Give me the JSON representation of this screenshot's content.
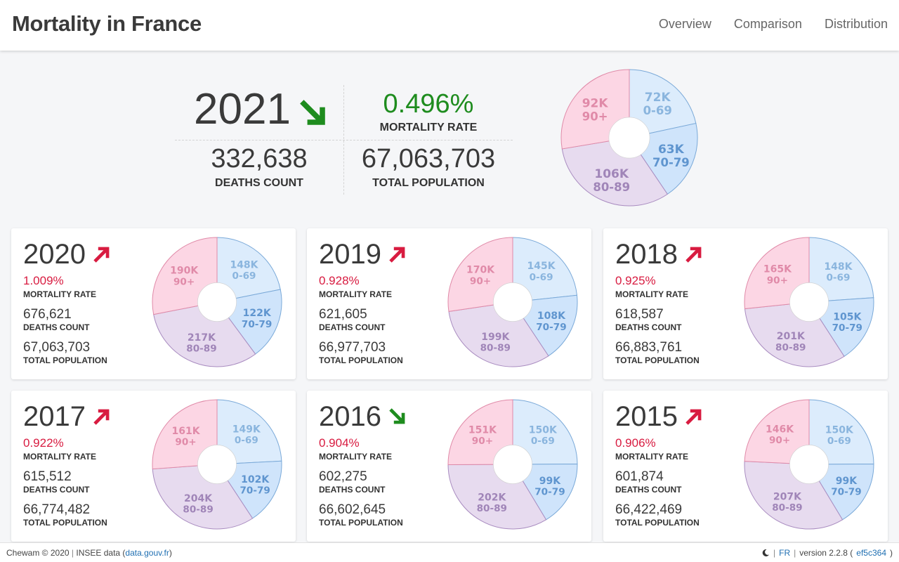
{
  "header": {
    "title": "Mortality in France",
    "nav": [
      "Overview",
      "Comparison",
      "Distribution"
    ]
  },
  "colors": {
    "decrease": "#1e8c1e",
    "increase": "#d81b40",
    "slice_0_69": "#dcecfc",
    "slice_70_79": "#cfe4fb",
    "slice_80_89": "#e7dbef",
    "slice_90_plus": "#fcd6e4"
  },
  "hero": {
    "year": "2021",
    "trend": "down",
    "mortality_rate": "0.496%",
    "mortality_rate_label": "MORTALITY RATE",
    "deaths_count": "332,638",
    "deaths_count_label": "DEATHS COUNT",
    "total_population": "67,063,703",
    "total_population_label": "TOTAL POPULATION",
    "pie": {
      "slices": [
        {
          "group": "0-69",
          "value_label": "72K",
          "value": 72
        },
        {
          "group": "70-79",
          "value_label": "63K",
          "value": 63
        },
        {
          "group": "80-89",
          "value_label": "106K",
          "value": 106
        },
        {
          "group": "90+",
          "value_label": "92K",
          "value": 92
        }
      ]
    }
  },
  "cards": [
    {
      "year": "2020",
      "trend": "up",
      "mortality_rate": "1.009%",
      "mortality_rate_label": "MORTALITY RATE",
      "deaths_count": "676,621",
      "deaths_count_label": "DEATHS COUNT",
      "total_population": "67,063,703",
      "total_population_label": "TOTAL POPULATION",
      "pie": {
        "slices": [
          {
            "group": "0-69",
            "value_label": "148K",
            "value": 148
          },
          {
            "group": "70-79",
            "value_label": "122K",
            "value": 122
          },
          {
            "group": "80-89",
            "value_label": "217K",
            "value": 217
          },
          {
            "group": "90+",
            "value_label": "190K",
            "value": 190
          }
        ]
      }
    },
    {
      "year": "2019",
      "trend": "up",
      "mortality_rate": "0.928%",
      "mortality_rate_label": "MORTALITY RATE",
      "deaths_count": "621,605",
      "deaths_count_label": "DEATHS COUNT",
      "total_population": "66,977,703",
      "total_population_label": "TOTAL POPULATION",
      "pie": {
        "slices": [
          {
            "group": "0-69",
            "value_label": "145K",
            "value": 145
          },
          {
            "group": "70-79",
            "value_label": "108K",
            "value": 108
          },
          {
            "group": "80-89",
            "value_label": "199K",
            "value": 199
          },
          {
            "group": "90+",
            "value_label": "170K",
            "value": 170
          }
        ]
      }
    },
    {
      "year": "2018",
      "trend": "up",
      "mortality_rate": "0.925%",
      "mortality_rate_label": "MORTALITY RATE",
      "deaths_count": "618,587",
      "deaths_count_label": "DEATHS COUNT",
      "total_population": "66,883,761",
      "total_population_label": "TOTAL POPULATION",
      "pie": {
        "slices": [
          {
            "group": "0-69",
            "value_label": "148K",
            "value": 148
          },
          {
            "group": "70-79",
            "value_label": "105K",
            "value": 105
          },
          {
            "group": "80-89",
            "value_label": "201K",
            "value": 201
          },
          {
            "group": "90+",
            "value_label": "165K",
            "value": 165
          }
        ]
      }
    },
    {
      "year": "2017",
      "trend": "up",
      "mortality_rate": "0.922%",
      "mortality_rate_label": "MORTALITY RATE",
      "deaths_count": "615,512",
      "deaths_count_label": "DEATHS COUNT",
      "total_population": "66,774,482",
      "total_population_label": "TOTAL POPULATION",
      "pie": {
        "slices": [
          {
            "group": "0-69",
            "value_label": "149K",
            "value": 149
          },
          {
            "group": "70-79",
            "value_label": "102K",
            "value": 102
          },
          {
            "group": "80-89",
            "value_label": "204K",
            "value": 204
          },
          {
            "group": "90+",
            "value_label": "161K",
            "value": 161
          }
        ]
      }
    },
    {
      "year": "2016",
      "trend": "down",
      "mortality_rate": "0.904%",
      "mortality_rate_label": "MORTALITY RATE",
      "deaths_count": "602,275",
      "deaths_count_label": "DEATHS COUNT",
      "total_population": "66,602,645",
      "total_population_label": "TOTAL POPULATION",
      "pie": {
        "slices": [
          {
            "group": "0-69",
            "value_label": "150K",
            "value": 150
          },
          {
            "group": "70-79",
            "value_label": "99K",
            "value": 99
          },
          {
            "group": "80-89",
            "value_label": "202K",
            "value": 202
          },
          {
            "group": "90+",
            "value_label": "151K",
            "value": 151
          }
        ]
      }
    },
    {
      "year": "2015",
      "trend": "up",
      "mortality_rate": "0.906%",
      "mortality_rate_label": "MORTALITY RATE",
      "deaths_count": "601,874",
      "deaths_count_label": "DEATHS COUNT",
      "total_population": "66,422,469",
      "total_population_label": "TOTAL POPULATION",
      "pie": {
        "slices": [
          {
            "group": "0-69",
            "value_label": "150K",
            "value": 150
          },
          {
            "group": "70-79",
            "value_label": "99K",
            "value": 99
          },
          {
            "group": "80-89",
            "value_label": "207K",
            "value": 207
          },
          {
            "group": "90+",
            "value_label": "146K",
            "value": 146
          }
        ]
      }
    }
  ],
  "footer": {
    "copyright": "Chewam © 2020",
    "separator": "|",
    "insee_prefix": "INSEE data (",
    "insee_link": "data.gouv.fr",
    "insee_suffix": ")",
    "theme_icon": "moon-icon",
    "language": "FR",
    "version_prefix": "version 2.2.8 (",
    "version_hash": "ef5c364",
    "version_suffix": ")"
  }
}
